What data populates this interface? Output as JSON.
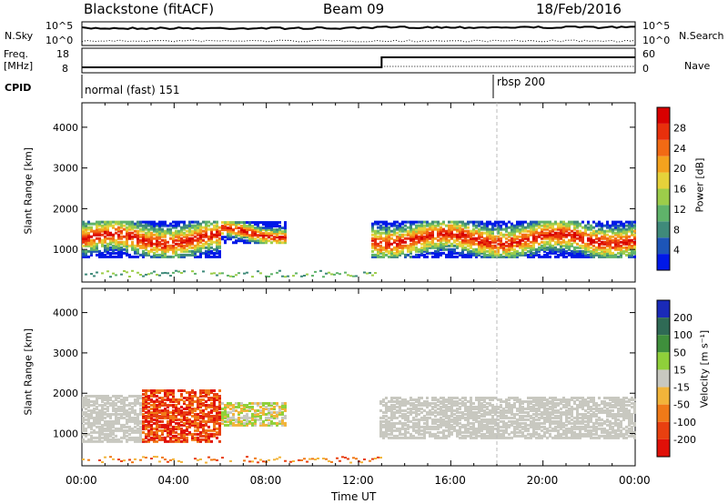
{
  "header": {
    "station": "Blackstone (fitACF)",
    "beam": "Beam 09",
    "date": "18/Feb/2016"
  },
  "top_panels": {
    "nsky_label": "N.Sky",
    "nsearch_label": "N.Search",
    "nsky_ticks": [
      "10^5",
      "10^0"
    ],
    "nsearch_ticks": [
      "10^5",
      "10^0"
    ],
    "freq_label": "Freq.",
    "freq_unit": "[MHz]",
    "freq_ticks": [
      "18",
      "8"
    ],
    "nave_label": "Nave",
    "nave_ticks": [
      "60",
      "0"
    ],
    "cpid_label": "CPID",
    "cpid_segments": [
      {
        "name": "normal (fast) 151",
        "start_hour": 0
      },
      {
        "name": "rbsp 200",
        "start_hour": 18
      }
    ],
    "freq_change_hour": 13
  },
  "chart_data": [
    {
      "type": "heatmap",
      "title": "",
      "xlabel": "Time UT",
      "ylabel": "Slant Range [km]",
      "x_ticks": [
        "00:00",
        "04:00",
        "08:00",
        "12:00",
        "16:00",
        "20:00",
        "00:00"
      ],
      "xlim_hours": [
        0,
        24
      ],
      "ylim": [
        200,
        4600
      ],
      "y_ticks": [
        1000,
        2000,
        3000,
        4000
      ],
      "colorbar": {
        "label": "Power [dB]",
        "ticks": [
          4,
          8,
          12,
          16,
          20,
          24,
          28
        ],
        "range": [
          0,
          32
        ],
        "colors": [
          "#0018e8",
          "#1d55b8",
          "#3f8a7a",
          "#5fb36a",
          "#9ccd4a",
          "#e6d23a",
          "#f4a21e",
          "#f26a14",
          "#e8300c",
          "#d80000"
        ]
      },
      "bands": [
        {
          "t0": 0.0,
          "t1": 6.0,
          "r_center": 1300,
          "r_halfwidth": 450
        },
        {
          "t0": 6.0,
          "t1": 8.8,
          "r_center": 1450,
          "r_halfwidth": 250
        },
        {
          "t0": 12.5,
          "t1": 24.0,
          "r_center": 1300,
          "r_halfwidth": 450
        }
      ]
    },
    {
      "type": "heatmap",
      "title": "",
      "xlabel": "Time UT",
      "ylabel": "Slant Range [km]",
      "x_ticks": [
        "00:00",
        "04:00",
        "08:00",
        "12:00",
        "16:00",
        "20:00",
        "00:00"
      ],
      "xlim_hours": [
        0,
        24
      ],
      "ylim": [
        200,
        4600
      ],
      "y_ticks": [
        1000,
        2000,
        3000,
        4000
      ],
      "colorbar": {
        "label": "Velocity [m s⁻¹]",
        "ticks": [
          200,
          100,
          50,
          15,
          -15,
          -50,
          -100,
          -200
        ],
        "colors": [
          "#1a2ab8",
          "#2f6a55",
          "#3f8f3c",
          "#8fd03a",
          "#c8c8c0",
          "#f2b43a",
          "#f07a18",
          "#e84010",
          "#e01008"
        ]
      }
    }
  ]
}
